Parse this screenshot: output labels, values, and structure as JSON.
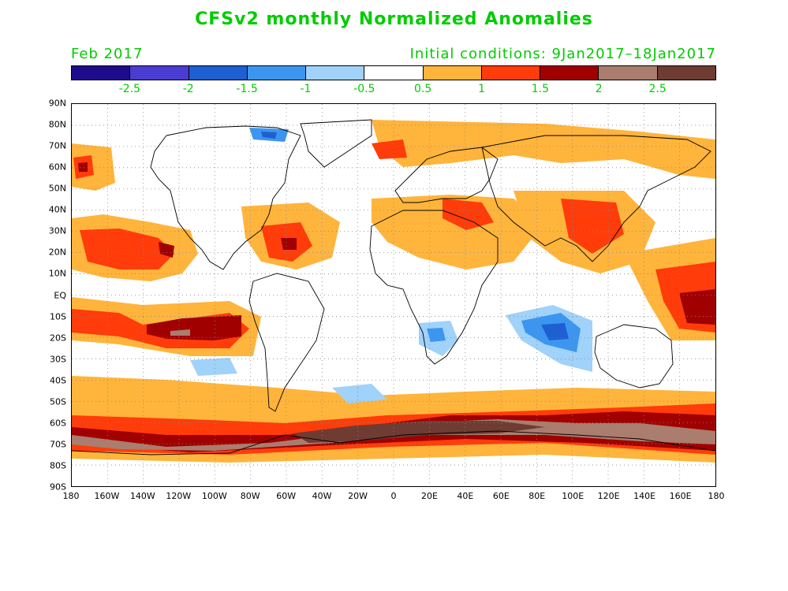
{
  "title": "CFSv2 monthly Normalized Anomalies",
  "valid_month": "Feb 2017",
  "initial_conditions": "Initial conditions: 9Jan2017–18Jan2017",
  "colorbar": {
    "colors": [
      "#1e0c8c",
      "#4b3cd2",
      "#1e5fd2",
      "#3c96f0",
      "#a0d2fa",
      "#ffffff",
      "#ffb43c",
      "#ff3c0a",
      "#a00000",
      "#aa7d6e",
      "#6e3c32"
    ],
    "labels": [
      "-2.5",
      "-2",
      "-1.5",
      "-1",
      "-0.5",
      "0.5",
      "1",
      "1.5",
      "2",
      "2.5"
    ]
  },
  "lat_labels": [
    "90N",
    "80N",
    "70N",
    "60N",
    "50N",
    "40N",
    "30N",
    "20N",
    "10N",
    "EQ",
    "10S",
    "20S",
    "30S",
    "40S",
    "50S",
    "60S",
    "70S",
    "80S",
    "90S"
  ],
  "lon_labels": [
    "180",
    "160W",
    "140W",
    "120W",
    "100W",
    "80W",
    "60W",
    "40W",
    "20W",
    "0",
    "20E",
    "40E",
    "60E",
    "80E",
    "100E",
    "120E",
    "140E",
    "160E",
    "180"
  ]
}
